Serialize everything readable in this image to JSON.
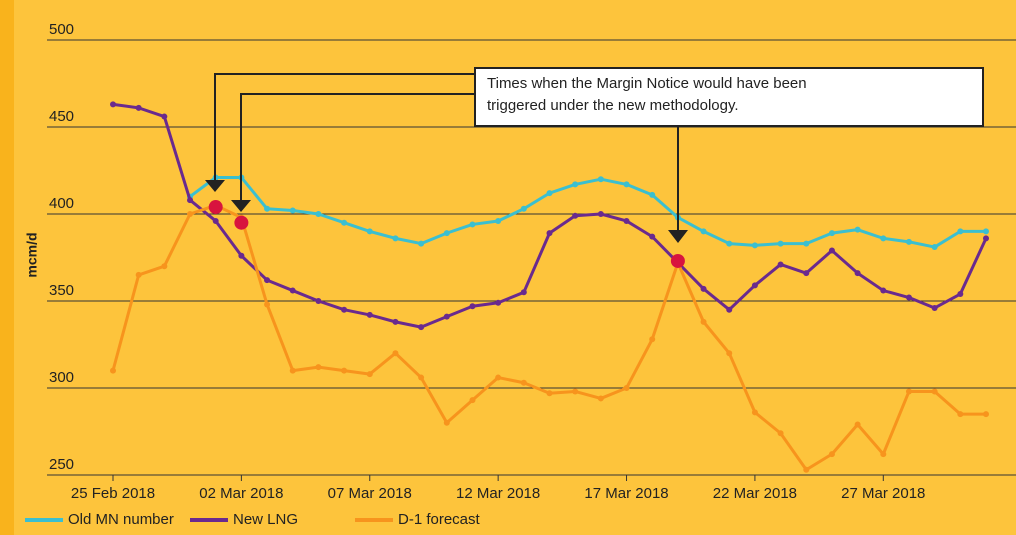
{
  "chart_data": {
    "type": "line",
    "ylabel": "mcm/d",
    "categories": [
      "25 Feb 2018",
      null,
      null,
      null,
      null,
      "02 Mar 2018",
      null,
      null,
      null,
      null,
      "07 Mar 2018",
      null,
      null,
      null,
      null,
      "12 Mar 2018",
      null,
      null,
      null,
      null,
      "17 Mar 2018",
      null,
      null,
      null,
      null,
      "22 Mar 2018",
      null,
      null,
      null,
      null,
      "27 Mar 2018",
      null,
      null,
      null,
      null
    ],
    "series": [
      {
        "name": "Old MN number",
        "color": "#3bbfd0",
        "values": [
          null,
          null,
          null,
          410,
          421,
          421,
          403,
          402,
          400,
          395,
          390,
          386,
          383,
          389,
          394,
          396,
          403,
          412,
          417,
          420,
          417,
          411,
          398,
          390,
          383,
          382,
          383,
          383,
          389,
          391,
          386,
          384,
          381,
          390,
          390
        ]
      },
      {
        "name": "New LNG",
        "color": "#6a2a8e",
        "values": [
          463,
          461,
          456,
          408,
          396,
          376,
          362,
          356,
          350,
          345,
          342,
          338,
          335,
          341,
          347,
          349,
          355,
          389,
          399,
          400,
          396,
          387,
          372,
          357,
          345,
          359,
          371,
          366,
          379,
          366,
          356,
          352,
          346,
          354,
          386
        ]
      },
      {
        "name": "D-1 forecast",
        "color": "#f7941d",
        "values": [
          310,
          365,
          370,
          400,
          405,
          398,
          348,
          310,
          312,
          310,
          308,
          320,
          306,
          280,
          293,
          306,
          303,
          297,
          298,
          294,
          300,
          328,
          372,
          338,
          320,
          286,
          274,
          253,
          262,
          279,
          262,
          298,
          298,
          285,
          285
        ]
      }
    ],
    "markers": {
      "color": "#d8143e",
      "values": [
        null,
        null,
        null,
        null,
        404,
        395,
        null,
        null,
        null,
        null,
        null,
        null,
        null,
        null,
        null,
        null,
        null,
        null,
        null,
        null,
        null,
        null,
        373,
        null,
        null,
        null,
        null,
        null,
        null,
        null,
        null,
        null,
        null,
        null,
        null
      ]
    },
    "annotation": [
      "Times when the Margin Notice would have been",
      "triggered under the new methodology."
    ],
    "ylim": [
      250,
      500
    ],
    "yticks": [
      250,
      300,
      350,
      400,
      450,
      500
    ],
    "grid": true
  }
}
